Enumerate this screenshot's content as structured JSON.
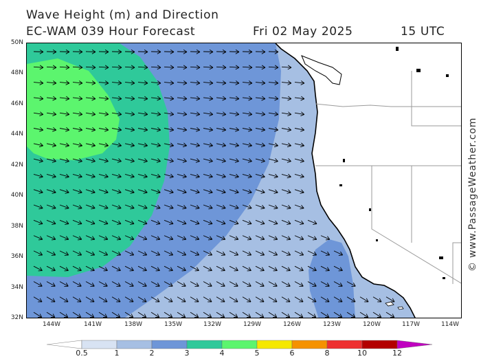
{
  "title": {
    "line1": "Wave Height (m) and Direction",
    "line2_model": "EC-WAM 039 Hour Forecast",
    "line2_date": "Fri 02 May 2025",
    "line2_time": "15 UTC"
  },
  "copyright": "© www.PassageWeather.com",
  "map": {
    "latitude_labels": [
      "50N",
      "48N",
      "46N",
      "44N",
      "42N",
      "40N",
      "38N",
      "36N",
      "34N",
      "32N"
    ],
    "longitude_labels": [
      "144W",
      "141W",
      "138W",
      "135W",
      "132W",
      "129W",
      "126W",
      "123W",
      "120W",
      "117W",
      "114W"
    ],
    "latitude_range": [
      32,
      50
    ],
    "longitude_range": [
      -146,
      -113
    ],
    "wave_direction": "predominantly from west-northwest toward east-southeast",
    "colors": {
      "land": "#ffffff",
      "coastline": "#000000",
      "borders": "#9a9a9a",
      "arrows": "#000000"
    }
  },
  "color_scale": {
    "labels": [
      "0.5",
      "1",
      "2",
      "3",
      "4",
      "5",
      "6",
      "8",
      "10",
      "12"
    ],
    "colors": [
      "#ffffff",
      "#d8e3f3",
      "#a6bfe3",
      "#6e96d8",
      "#2fc99a",
      "#5cf56e",
      "#f5e800",
      "#f59200",
      "#ee3030",
      "#b30000",
      "#c000c0"
    ]
  }
}
